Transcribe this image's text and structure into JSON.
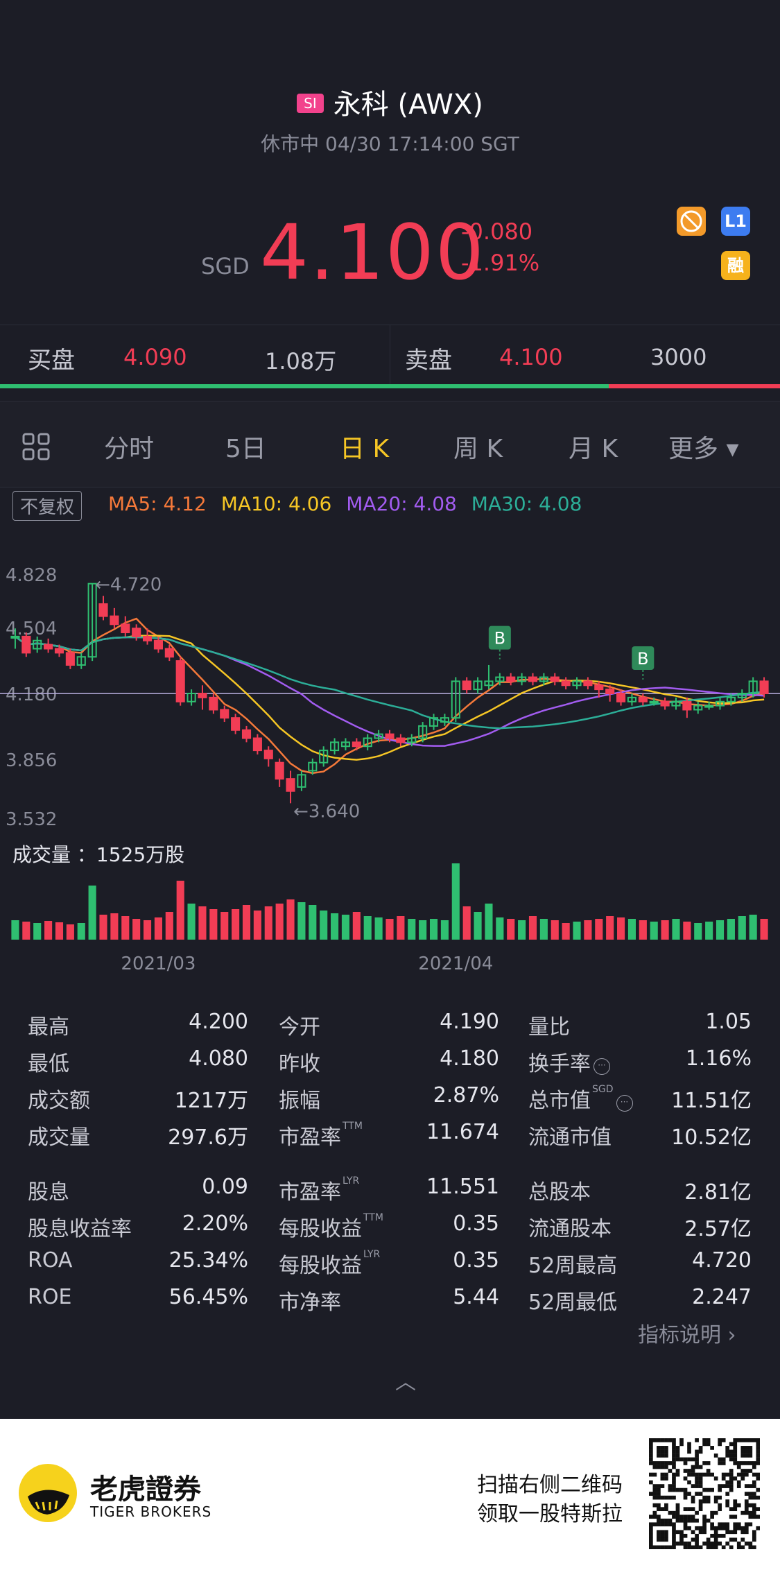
{
  "header": {
    "badge": "SI",
    "title": "永科 (AWX)",
    "status": "休市中 04/30 17:14:00 SGT"
  },
  "quote": {
    "currency": "SGD",
    "price": "4.100",
    "change": "-0.080",
    "change_pct": "-1.91%",
    "icons": [
      "no-daytrade-icon",
      "level1-icon",
      "margin-icon"
    ],
    "l1_label": "L1",
    "margin_label": "融"
  },
  "book": {
    "bid_label": "买盘",
    "bid_price": "4.090",
    "bid_size": "1.08万",
    "ask_label": "卖盘",
    "ask_price": "4.100",
    "ask_size": "3000",
    "bid_ratio": 0.78
  },
  "tabs": [
    {
      "label": "分时",
      "active": false
    },
    {
      "label": "5日",
      "active": false
    },
    {
      "label": "日 K",
      "active": true
    },
    {
      "label": "周 K",
      "active": false
    },
    {
      "label": "月 K",
      "active": false
    },
    {
      "label": "更多 ▾",
      "active": false
    }
  ],
  "ma": {
    "adjust_label": "不复权",
    "ma5": "MA5: 4.12",
    "ma10": "MA10: 4.06",
    "ma20": "MA20: 4.08",
    "ma30": "MA30: 4.08",
    "colors": {
      "ma5": "#f5793a",
      "ma10": "#f6c625",
      "ma20": "#a25cf0",
      "ma30": "#2cae98"
    }
  },
  "chart_data": {
    "type": "candlestick",
    "y_ticks": [
      "4.828",
      "4.504",
      "4.180",
      "3.856",
      "3.532"
    ],
    "ylim": [
      3.532,
      4.828
    ],
    "high_label": "←4.720",
    "low_label": "←3.640",
    "buy_markers": [
      "B",
      "B"
    ],
    "volume_label": "成交量 ：1525万股",
    "x_ticks": [
      "2021/03",
      "2021/04"
    ],
    "candles": [
      [
        4.46,
        4.46,
        4.5,
        4.4
      ],
      [
        4.46,
        4.38,
        4.48,
        4.36
      ],
      [
        4.4,
        4.44,
        4.46,
        4.38
      ],
      [
        4.42,
        4.4,
        4.45,
        4.38
      ],
      [
        4.4,
        4.38,
        4.42,
        4.36
      ],
      [
        4.38,
        4.32,
        4.4,
        4.3
      ],
      [
        4.32,
        4.36,
        4.38,
        4.3
      ],
      [
        4.36,
        4.72,
        4.72,
        4.34
      ],
      [
        4.62,
        4.56,
        4.66,
        4.54
      ],
      [
        4.56,
        4.52,
        4.6,
        4.5
      ],
      [
        4.52,
        4.48,
        4.56,
        4.46
      ],
      [
        4.5,
        4.46,
        4.52,
        4.44
      ],
      [
        4.46,
        4.44,
        4.5,
        4.42
      ],
      [
        4.44,
        4.4,
        4.46,
        4.38
      ],
      [
        4.4,
        4.36,
        4.42,
        4.34
      ],
      [
        4.34,
        4.14,
        4.36,
        4.12
      ],
      [
        4.14,
        4.18,
        4.2,
        4.12
      ],
      [
        4.18,
        4.16,
        4.22,
        4.1
      ],
      [
        4.16,
        4.1,
        4.18,
        4.08
      ],
      [
        4.1,
        4.06,
        4.12,
        4.04
      ],
      [
        4.06,
        4.0,
        4.08,
        3.98
      ],
      [
        4.0,
        3.96,
        4.02,
        3.94
      ],
      [
        3.96,
        3.9,
        3.98,
        3.88
      ],
      [
        3.9,
        3.86,
        3.92,
        3.82
      ],
      [
        3.84,
        3.76,
        3.86,
        3.72
      ],
      [
        3.76,
        3.7,
        3.8,
        3.64
      ],
      [
        3.72,
        3.78,
        3.8,
        3.7
      ],
      [
        3.8,
        3.84,
        3.86,
        3.78
      ],
      [
        3.84,
        3.9,
        3.92,
        3.82
      ],
      [
        3.9,
        3.94,
        3.96,
        3.88
      ],
      [
        3.92,
        3.94,
        3.96,
        3.9
      ],
      [
        3.94,
        3.92,
        3.96,
        3.9
      ],
      [
        3.92,
        3.96,
        3.98,
        3.9
      ],
      [
        3.96,
        3.98,
        4.0,
        3.94
      ],
      [
        3.98,
        3.96,
        4.0,
        3.94
      ],
      [
        3.96,
        3.94,
        3.98,
        3.92
      ],
      [
        3.94,
        3.96,
        3.98,
        3.92
      ],
      [
        3.96,
        4.02,
        4.04,
        3.94
      ],
      [
        4.02,
        4.06,
        4.08,
        4.0
      ],
      [
        4.04,
        4.06,
        4.08,
        4.02
      ],
      [
        4.06,
        4.24,
        4.26,
        4.04
      ],
      [
        4.24,
        4.2,
        4.26,
        4.18
      ],
      [
        4.2,
        4.24,
        4.26,
        4.18
      ],
      [
        4.22,
        4.24,
        4.32,
        4.2
      ],
      [
        4.24,
        4.26,
        4.28,
        4.22
      ],
      [
        4.26,
        4.24,
        4.28,
        4.22
      ],
      [
        4.24,
        4.26,
        4.28,
        4.22
      ],
      [
        4.26,
        4.24,
        4.28,
        4.22
      ],
      [
        4.24,
        4.26,
        4.28,
        4.22
      ],
      [
        4.26,
        4.24,
        4.28,
        4.22
      ],
      [
        4.24,
        4.22,
        4.26,
        4.2
      ],
      [
        4.22,
        4.24,
        4.26,
        4.2
      ],
      [
        4.24,
        4.22,
        4.26,
        4.2
      ],
      [
        4.22,
        4.2,
        4.24,
        4.16
      ],
      [
        4.2,
        4.18,
        4.22,
        4.14
      ],
      [
        4.18,
        4.14,
        4.2,
        4.12
      ],
      [
        4.14,
        4.16,
        4.18,
        4.12
      ],
      [
        4.16,
        4.14,
        4.18,
        4.12
      ],
      [
        4.14,
        4.14,
        4.16,
        4.12
      ],
      [
        4.14,
        4.12,
        4.16,
        4.1
      ],
      [
        4.12,
        4.14,
        4.16,
        4.1
      ],
      [
        4.14,
        4.1,
        4.16,
        4.06
      ],
      [
        4.1,
        4.12,
        4.14,
        4.08
      ],
      [
        4.12,
        4.12,
        4.14,
        4.1
      ],
      [
        4.12,
        4.14,
        4.16,
        4.1
      ],
      [
        4.14,
        4.16,
        4.18,
        4.12
      ],
      [
        4.16,
        4.18,
        4.2,
        4.14
      ],
      [
        4.18,
        4.24,
        4.26,
        4.16
      ],
      [
        4.24,
        4.18,
        4.26,
        4.16
      ]
    ],
    "volumes": [
      28,
      26,
      24,
      27,
      25,
      22,
      24,
      78,
      36,
      38,
      34,
      30,
      28,
      32,
      40,
      85,
      52,
      48,
      44,
      40,
      44,
      50,
      42,
      48,
      52,
      58,
      54,
      50,
      42,
      38,
      36,
      40,
      34,
      32,
      30,
      34,
      30,
      28,
      30,
      28,
      110,
      48,
      40,
      52,
      32,
      30,
      28,
      34,
      30,
      28,
      24,
      26,
      28,
      30,
      34,
      32,
      30,
      28,
      26,
      28,
      30,
      26,
      24,
      26,
      28,
      30,
      34,
      36,
      30
    ]
  },
  "stats": {
    "col1": [
      {
        "label": "最高",
        "value": "4.200"
      },
      {
        "label": "最低",
        "value": "4.080"
      },
      {
        "label": "成交额",
        "value": "1217万"
      },
      {
        "label": "成交量",
        "value": "297.6万"
      },
      {
        "label": "股息",
        "value": "0.09"
      },
      {
        "label": "股息收益率",
        "value": "2.20%"
      },
      {
        "label": "ROA",
        "value": "25.34%"
      },
      {
        "label": "ROE",
        "value": "56.45%"
      }
    ],
    "col2": [
      {
        "label": "今开",
        "value": "4.190",
        "sup": ""
      },
      {
        "label": "昨收",
        "value": "4.180",
        "sup": ""
      },
      {
        "label": "振幅",
        "value": "2.87%",
        "sup": ""
      },
      {
        "label": "市盈率",
        "value": "11.674",
        "sup": "TTM"
      },
      {
        "label": "市盈率",
        "value": "11.551",
        "sup": "LYR"
      },
      {
        "label": "每股收益",
        "value": "0.35",
        "sup": "TTM"
      },
      {
        "label": "每股收益",
        "value": "0.35",
        "sup": "LYR"
      },
      {
        "label": "市净率",
        "value": "5.44",
        "sup": ""
      }
    ],
    "col3": [
      {
        "label": "量比",
        "value": "1.05",
        "sup": ""
      },
      {
        "label": "换手率",
        "value": "1.16%",
        "sup": ""
      },
      {
        "label": "总市值",
        "value": "11.51亿",
        "sup": "SGD"
      },
      {
        "label": "流通市值",
        "value": "10.52亿",
        "sup": ""
      },
      {
        "label": "总股本",
        "value": "2.81亿",
        "sup": ""
      },
      {
        "label": "流通股本",
        "value": "2.57亿",
        "sup": ""
      },
      {
        "label": "52周最高",
        "value": "4.720",
        "sup": ""
      },
      {
        "label": "52周最低",
        "value": "2.247",
        "sup": ""
      }
    ],
    "indicator_link": "指标说明 ›"
  },
  "footer": {
    "brand_cn": "老虎證券",
    "brand_en": "TIGER BROKERS",
    "promo_line1": "扫描右侧二维码",
    "promo_line2": "领取一股特斯拉"
  }
}
